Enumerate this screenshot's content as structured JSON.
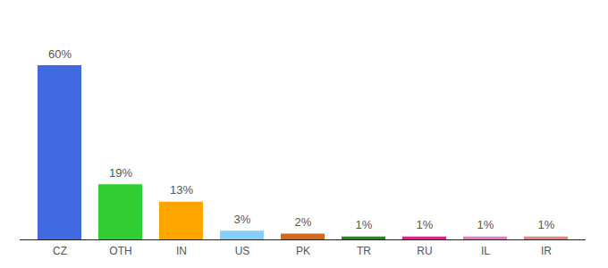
{
  "chart_data": {
    "type": "bar",
    "categories": [
      "CZ",
      "OTH",
      "IN",
      "US",
      "PK",
      "TR",
      "RU",
      "IL",
      "IR"
    ],
    "values": [
      60,
      19,
      13,
      3,
      2,
      1,
      1,
      1,
      1
    ],
    "value_labels": [
      "60%",
      "19%",
      "13%",
      "3%",
      "2%",
      "1%",
      "1%",
      "1%",
      "1%"
    ],
    "colors": [
      "#4169e1",
      "#32cd32",
      "#ffa500",
      "#87cefa",
      "#d2691e",
      "#228b22",
      "#ff1493",
      "#f076c6",
      "#f08080"
    ],
    "data_labels": true,
    "tick_labels": "x"
  }
}
